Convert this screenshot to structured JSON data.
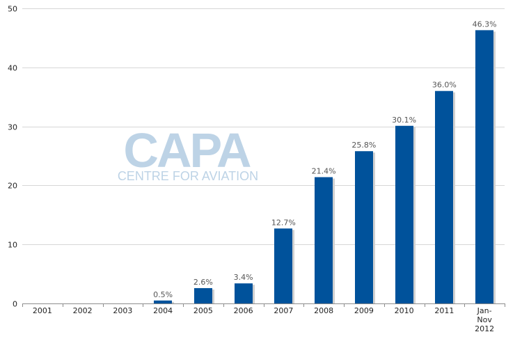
{
  "chart_data": {
    "type": "bar",
    "categories": [
      "2001",
      "2002",
      "2003",
      "2004",
      "2005",
      "2006",
      "2007",
      "2008",
      "2009",
      "2010",
      "2011",
      "Jan-Nov 2012"
    ],
    "category_lines": [
      [
        "2001"
      ],
      [
        "2002"
      ],
      [
        "2003"
      ],
      [
        "2004"
      ],
      [
        "2005"
      ],
      [
        "2006"
      ],
      [
        "2007"
      ],
      [
        "2008"
      ],
      [
        "2009"
      ],
      [
        "2010"
      ],
      [
        "2011"
      ],
      [
        "Jan-",
        "Nov",
        "2012"
      ]
    ],
    "values": [
      0,
      0,
      0,
      0.5,
      2.6,
      3.4,
      12.7,
      21.4,
      25.8,
      30.1,
      36.0,
      46.3
    ],
    "data_labels": [
      "",
      "",
      "",
      "0.5%",
      "2.6%",
      "3.4%",
      "12.7%",
      "21.4%",
      "25.8%",
      "30.1%",
      "36.0%",
      "46.3%"
    ],
    "yticks": [
      0,
      10,
      20,
      30,
      40,
      50
    ],
    "ylim": [
      0,
      50
    ],
    "grid": true,
    "legend": "none",
    "colors": {
      "bar": "#00529b",
      "shadow": "#d0d0d0",
      "grid": "#d6d6d6",
      "watermark": "#bdd3e6"
    }
  },
  "watermark": {
    "main": "CAPA",
    "sub": "CENTRE FOR AVIATION"
  }
}
